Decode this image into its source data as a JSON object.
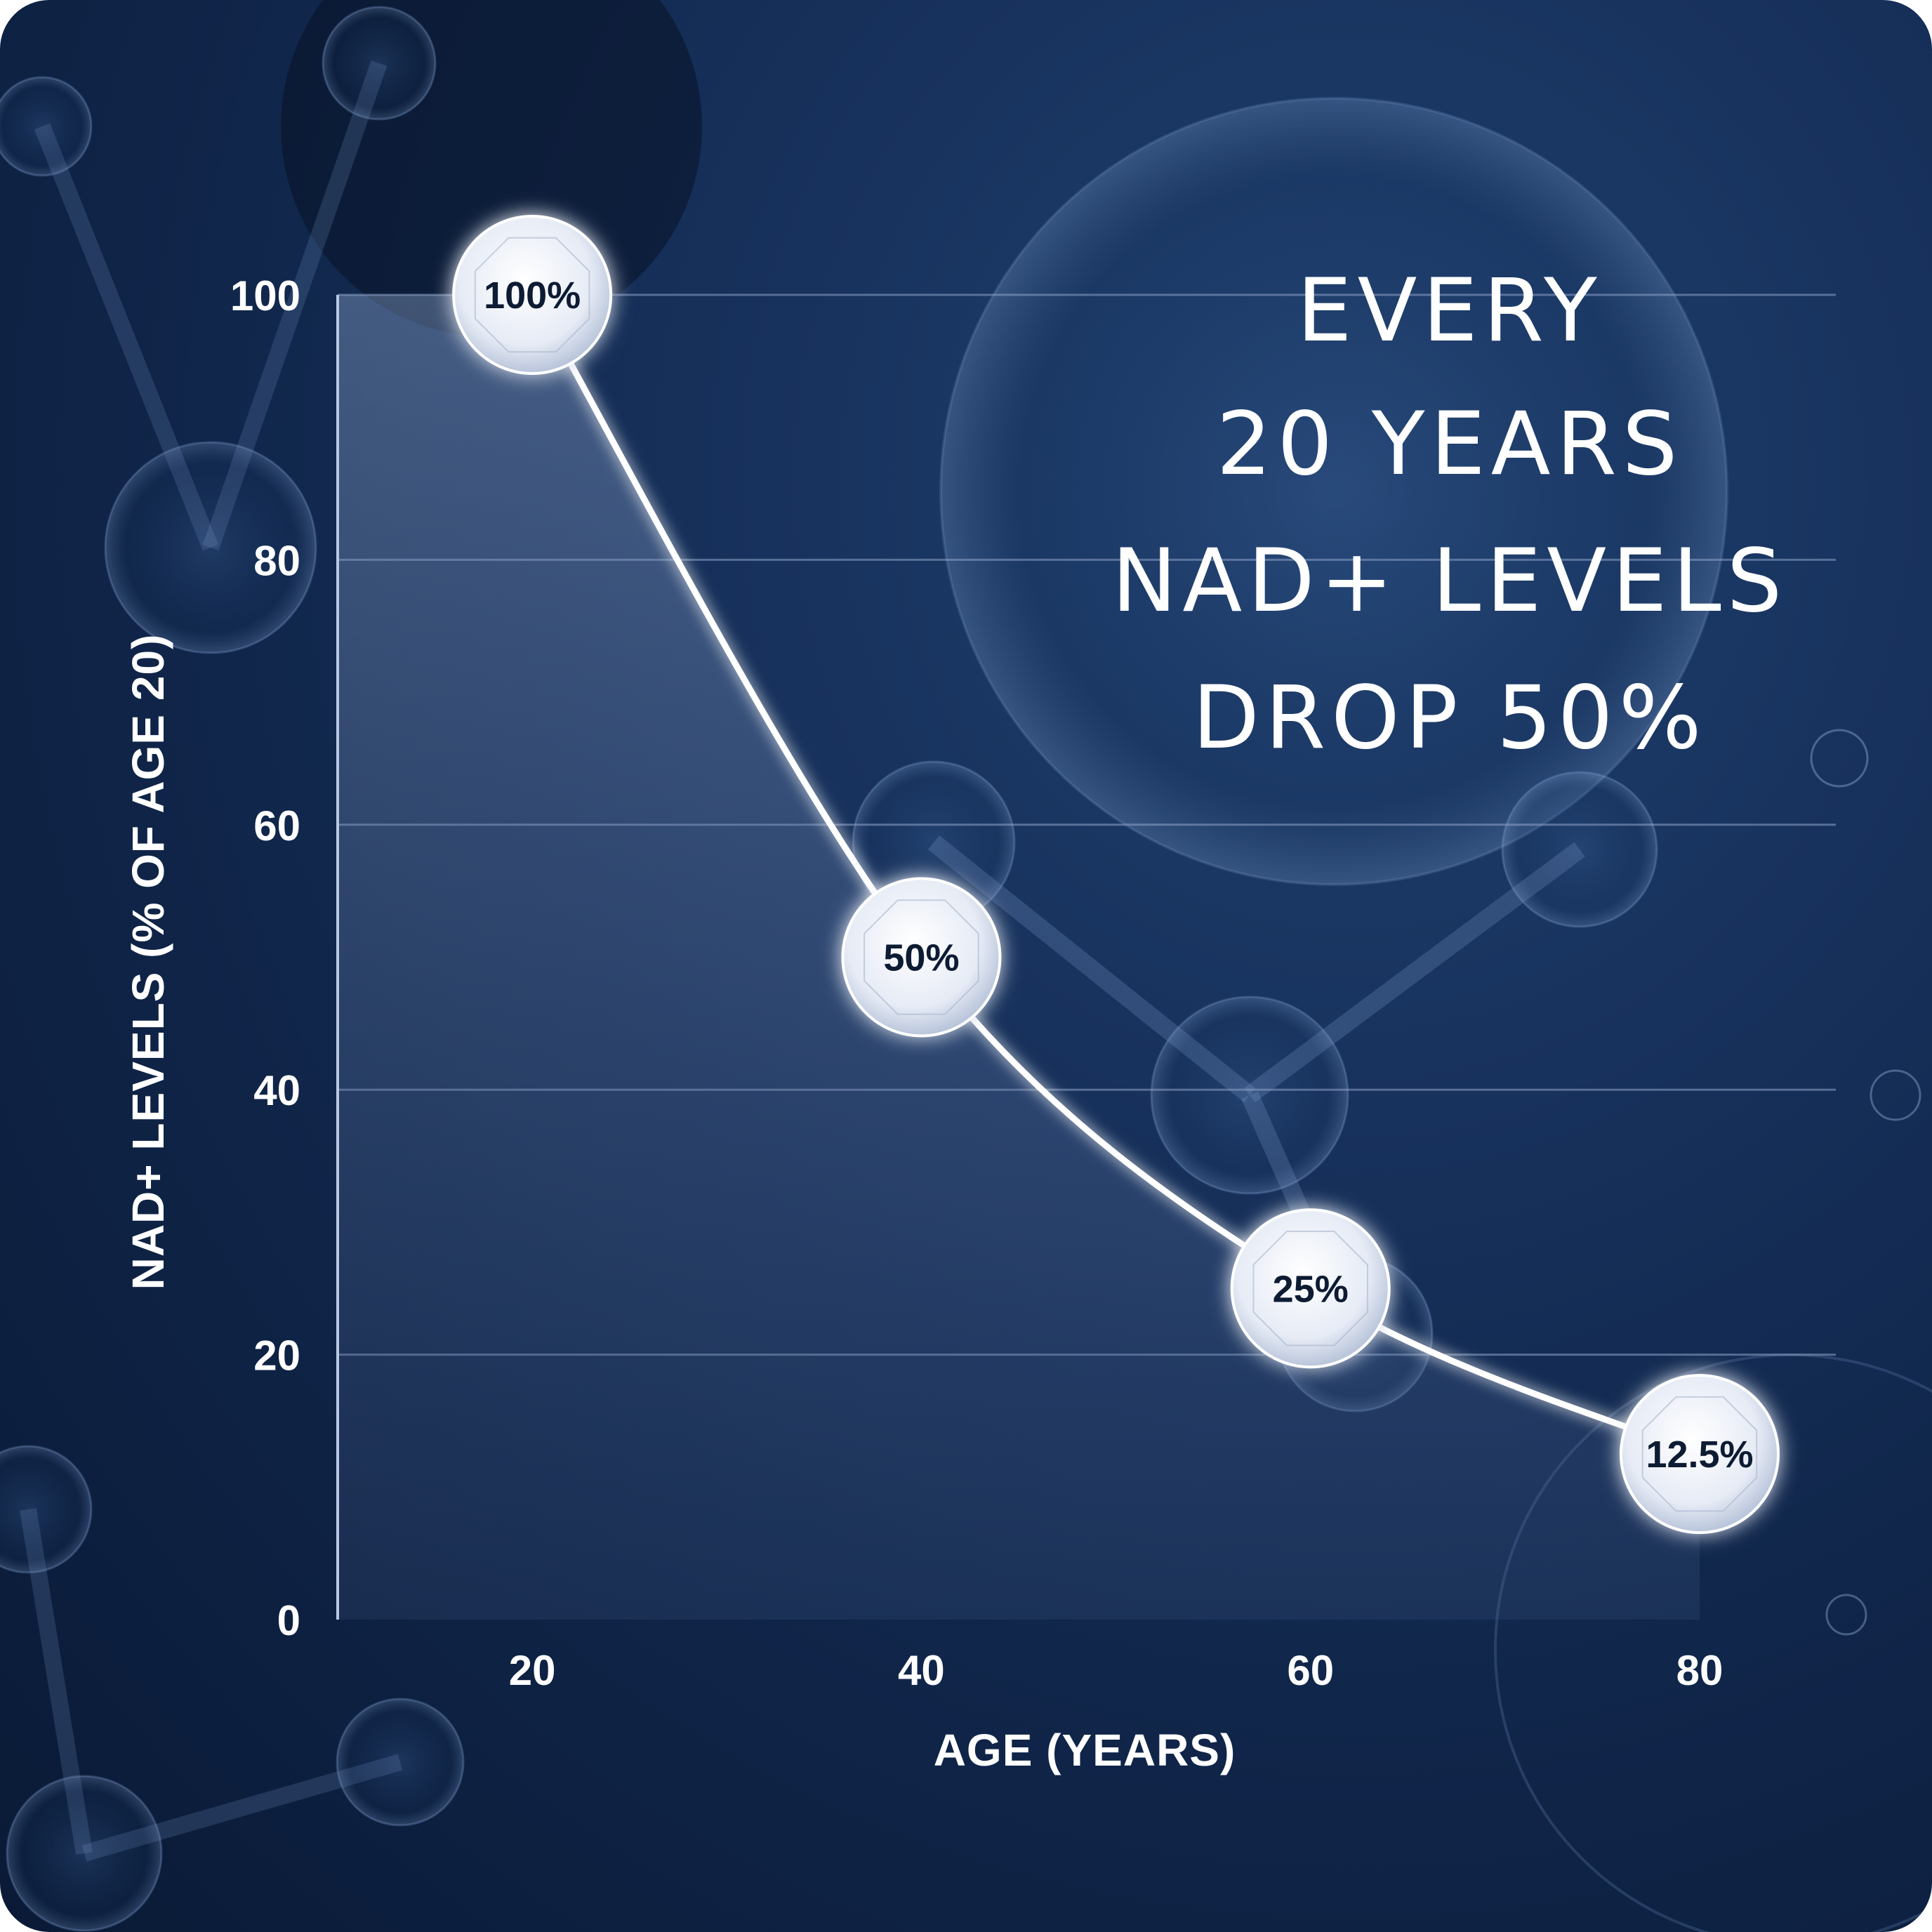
{
  "headline": [
    "EVERY",
    "20 YEARS",
    "NAD+ LEVELS",
    "DROP 50%"
  ],
  "chart_data": {
    "type": "line",
    "title": "",
    "xlabel": "AGE (YEARS)",
    "ylabel": "NAD+ LEVELS (% OF AGE 20)",
    "x": [
      20,
      40,
      60,
      80
    ],
    "values": [
      100,
      50,
      25,
      12.5
    ],
    "point_labels": [
      "100%",
      "50%",
      "25%",
      "12.5%"
    ],
    "xlim": [
      10,
      87
    ],
    "ylim": [
      0,
      100
    ],
    "x_ticks": [
      20,
      40,
      60,
      80
    ],
    "y_ticks": [
      0,
      20,
      40,
      60,
      80,
      100
    ],
    "grid": true,
    "colors": {
      "line": "#ffffff",
      "marker_fill": "#e8ecf5",
      "marker_text": "#0d1b33",
      "text": "#ffffff",
      "grid": "#8ea3c6"
    }
  }
}
